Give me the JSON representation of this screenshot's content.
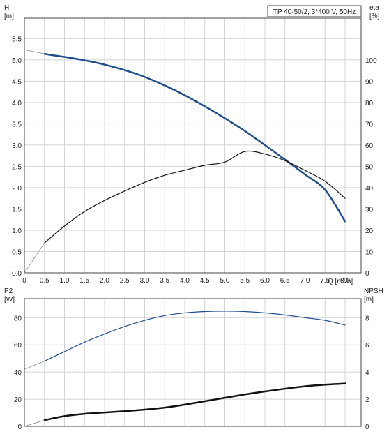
{
  "chart_data": [
    {
      "type": "line",
      "title": "TP 40-50/2, 3*400 V, 50Hz",
      "xlabel": "Q [m³/h]",
      "ylabel": "H\n[m]",
      "y2label": "eta\n[%]",
      "xlim": [
        0,
        8.4
      ],
      "ylim": [
        0,
        5.98
      ],
      "y2lim": [
        0,
        119.6
      ],
      "x_ticks": [
        "0",
        "0.5",
        "1.0",
        "1.5",
        "2.0",
        "2.5",
        "3.0",
        "3.5",
        "4.0",
        "4.5",
        "5.0",
        "5.5",
        "6.0",
        "6.5",
        "7.0",
        "7.5",
        "8.0"
      ],
      "x_ticks_num": [
        0,
        0.5,
        1.0,
        1.5,
        2.0,
        2.5,
        3.0,
        3.5,
        4.0,
        4.5,
        5.0,
        5.5,
        6.0,
        6.5,
        7.0,
        7.5,
        8.0
      ],
      "y_ticks": [
        "0.0",
        "0.5",
        "1.0",
        "1.5",
        "2.0",
        "2.5",
        "3.0",
        "3.5",
        "4.0",
        "4.5",
        "5.0",
        "5.5"
      ],
      "y_ticks_num": [
        0,
        0.5,
        1.0,
        1.5,
        2.0,
        2.5,
        3.0,
        3.5,
        4.0,
        4.5,
        5.0,
        5.5
      ],
      "y2_ticks": [
        "0",
        "10",
        "20",
        "30",
        "40",
        "50",
        "60",
        "70",
        "80",
        "90",
        "100"
      ],
      "y2_ticks_num": [
        0,
        10,
        20,
        30,
        40,
        50,
        60,
        70,
        80,
        90,
        100
      ],
      "grid": true,
      "series": [
        {
          "axis": "left",
          "color": "#1f4e8c",
          "width": 2.5,
          "x": [
            0.5,
            1.0,
            1.5,
            2.0,
            2.5,
            3.0,
            3.5,
            4.0,
            4.5,
            5.0,
            5.5,
            6.0,
            6.5,
            7.0,
            7.5,
            8.0
          ],
          "values": [
            5.14,
            5.07,
            4.99,
            4.89,
            4.76,
            4.6,
            4.4,
            4.17,
            3.91,
            3.63,
            3.33,
            3.0,
            2.66,
            2.31,
            1.95,
            1.21
          ]
        },
        {
          "axis": "left",
          "color": "#888888",
          "width": 0.8,
          "x": [
            0,
            0.5
          ],
          "values": [
            5.24,
            5.14
          ]
        },
        {
          "axis": "right",
          "color": "#111111",
          "width": 1.2,
          "x": [
            0.5,
            1.0,
            1.5,
            2.0,
            2.5,
            3.0,
            3.5,
            4.0,
            4.5,
            5.0,
            5.5,
            6.0,
            6.5,
            7.0,
            7.5,
            8.0
          ],
          "values": [
            14,
            22,
            28.8,
            34,
            38.4,
            42.5,
            45.8,
            48.2,
            50.5,
            52,
            57,
            55.8,
            52.7,
            48.1,
            43,
            35
          ]
        },
        {
          "axis": "right",
          "color": "#888888",
          "width": 0.8,
          "x": [
            0,
            0.5
          ],
          "values": [
            0,
            14
          ]
        }
      ]
    },
    {
      "type": "line",
      "xlabel": "",
      "ylabel": "P2\n[W]",
      "y2label": "NPSH\n[m]",
      "xlim": [
        0,
        8.4
      ],
      "ylim": [
        0,
        94
      ],
      "y2lim": [
        0,
        9.4
      ],
      "x_ticks_num": [
        0,
        0.5,
        1.0,
        1.5,
        2.0,
        2.5,
        3.0,
        3.5,
        4.0,
        4.5,
        5.0,
        5.5,
        6.0,
        6.5,
        7.0,
        7.5,
        8.0
      ],
      "y_ticks": [
        "0",
        "20",
        "40",
        "60",
        "80"
      ],
      "y_ticks_num": [
        0,
        20,
        40,
        60,
        80
      ],
      "y2_ticks": [
        "0",
        "2",
        "4",
        "6",
        "8"
      ],
      "y2_ticks_num": [
        0,
        2,
        4,
        6,
        8
      ],
      "grid": true,
      "series": [
        {
          "axis": "left",
          "color": "#1f4e8c",
          "width": 1.2,
          "x": [
            0.5,
            1.0,
            1.5,
            2.0,
            2.5,
            3.0,
            3.5,
            4.0,
            4.5,
            5.0,
            5.5,
            6.0,
            6.5,
            7.0,
            7.5,
            8.0
          ],
          "values": [
            48,
            55,
            62,
            68,
            73.5,
            78,
            81.5,
            83.5,
            84.5,
            84.8,
            84.5,
            83.5,
            82,
            80,
            78,
            74.5
          ]
        },
        {
          "axis": "left",
          "color": "#888888",
          "width": 0.8,
          "x": [
            0,
            0.5
          ],
          "values": [
            42,
            48
          ]
        },
        {
          "axis": "right",
          "color": "#111111",
          "width": 2.5,
          "x": [
            0.5,
            1.0,
            1.5,
            2.0,
            2.5,
            3.0,
            3.5,
            4.0,
            4.5,
            5.0,
            5.5,
            6.0,
            6.5,
            7.0,
            7.5,
            8.0
          ],
          "values": [
            0.45,
            0.75,
            0.92,
            1.02,
            1.12,
            1.23,
            1.38,
            1.6,
            1.85,
            2.1,
            2.35,
            2.57,
            2.77,
            2.95,
            3.07,
            3.15
          ]
        },
        {
          "axis": "right",
          "color": "#888888",
          "width": 0.8,
          "x": [
            0,
            0.5
          ],
          "values": [
            0,
            0.45
          ]
        }
      ]
    }
  ]
}
